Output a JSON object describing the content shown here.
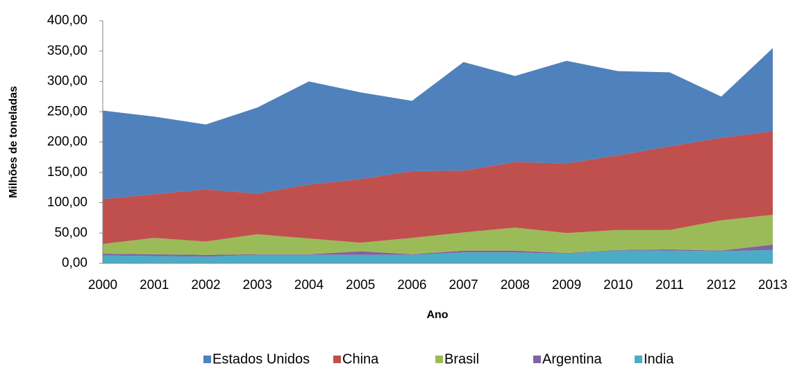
{
  "chart_data": {
    "type": "stacked_area",
    "x_label": "Ano",
    "y_label": "Milhões de toneladas",
    "categories": [
      "2000",
      "2001",
      "2002",
      "2003",
      "2004",
      "2005",
      "2006",
      "2007",
      "2008",
      "2009",
      "2010",
      "2011",
      "2012",
      "2013"
    ],
    "series": [
      {
        "name": "Estados Unidos",
        "color": "#4f81bd",
        "values": [
          146,
          128,
          107,
          142,
          170,
          143,
          116,
          179,
          142,
          169,
          139,
          122,
          68,
          137
        ]
      },
      {
        "name": "China",
        "color": "#c0504d",
        "values": [
          74,
          72,
          86,
          67,
          89,
          105,
          110,
          102,
          108,
          115,
          123,
          138,
          136,
          138
        ]
      },
      {
        "name": "Brasil",
        "color": "#9bbb59",
        "values": [
          16,
          27,
          22,
          33,
          26,
          14,
          27,
          30,
          38,
          33,
          33,
          32,
          50,
          49
        ]
      },
      {
        "name": "Argentina",
        "color": "#8064a2",
        "values": [
          3,
          3,
          3,
          1,
          1,
          6,
          1,
          3,
          3,
          1,
          1,
          2,
          1,
          9
        ]
      },
      {
        "name": "India",
        "color": "#4bacc6",
        "values": [
          13,
          12,
          11,
          14,
          14,
          14,
          14,
          18,
          18,
          16,
          21,
          21,
          20,
          22
        ]
      }
    ],
    "ylim": [
      0,
      400
    ],
    "yticks": [
      {
        "value": 0,
        "label": "0,00"
      },
      {
        "value": 50,
        "label": "50,00"
      },
      {
        "value": 100,
        "label": "100,00"
      },
      {
        "value": 150,
        "label": "150,00"
      },
      {
        "value": 200,
        "label": "200,00"
      },
      {
        "value": 250,
        "label": "250,00"
      },
      {
        "value": 300,
        "label": "300,00"
      },
      {
        "value": 350,
        "label": "350,00"
      },
      {
        "value": 400,
        "label": "400,00"
      }
    ],
    "grid": false,
    "legend": "bottom"
  }
}
